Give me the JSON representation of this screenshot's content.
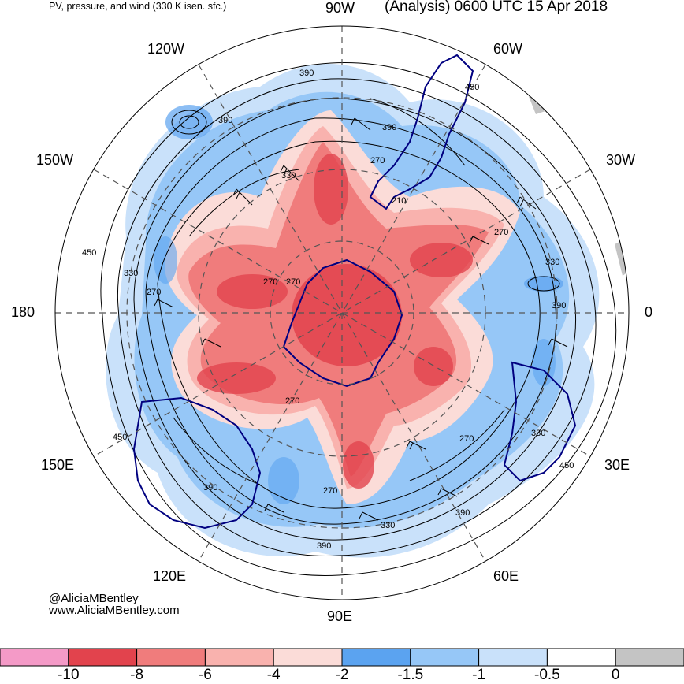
{
  "header": {
    "left_title": "PV, pressure, and wind (330 K isen. sfc.)",
    "right_title": "(Analysis) 0600 UTC 15 Apr 2018"
  },
  "longitude_labels": {
    "top": "90W",
    "top_left": "120W",
    "top_right": "60W",
    "upper_left": "150W",
    "upper_right": "30W",
    "left": "180",
    "right": "0",
    "lower_left": "150E",
    "lower_right": "30E",
    "bottom_left": "120E",
    "bottom_right": "60E",
    "bottom": "90E"
  },
  "contour_labels": [
    "390",
    "450",
    "390",
    "330",
    "270",
    "210",
    "390",
    "450",
    "330",
    "270",
    "270",
    "330",
    "270",
    "390",
    "270",
    "270",
    "390",
    "450",
    "330",
    "270",
    "330",
    "390",
    "450",
    "390",
    "270"
  ],
  "credit": {
    "line1": "@AliciaMBentley",
    "line2": "www.AliciaMBentley.com"
  },
  "colorbar": {
    "colors": [
      "#f49ac7",
      "#e2434d",
      "#f07c7c",
      "#f9b2ae",
      "#fbdcd8",
      "#5ba3f0",
      "#96c7f7",
      "#c9e1fa",
      "#ffffff",
      "#c4c4c4"
    ],
    "ticks": [
      "-10",
      "-8",
      "-6",
      "-4",
      "-2",
      "-1.5",
      "-1",
      "-0.5",
      "0"
    ]
  },
  "map_colors": {
    "strong_negative": "#e2434d",
    "medium_negative": "#f07c7c",
    "weak_negative": "#f9b2ae",
    "faint_negative": "#fbdcd8",
    "blue_band": "#96c7f7",
    "light_blue": "#c9e1fa",
    "deep_blue": "#5ba3f0",
    "coastline": "#000080"
  }
}
